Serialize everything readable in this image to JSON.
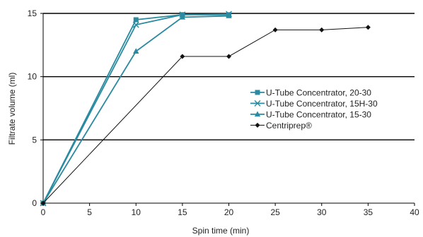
{
  "chart_data": {
    "type": "line",
    "xlabel": "Spin time (min)",
    "ylabel": "Filtrate volume (ml)",
    "xlim": [
      0,
      40
    ],
    "ylim": [
      0,
      15
    ],
    "x_ticks": [
      "0",
      "5",
      "10",
      "15",
      "20",
      "25",
      "30",
      "35",
      "40"
    ],
    "y_ticks": [
      "0",
      "5",
      "10",
      "15"
    ],
    "horizontal_grid": true,
    "legend_position": "right",
    "series": [
      {
        "name": "U-Tube Concentrator, 20-30",
        "marker": "square",
        "color": "#2a8aa0",
        "points": [
          [
            0,
            0
          ],
          [
            10,
            14.5
          ],
          [
            15,
            14.9
          ],
          [
            20,
            14.9
          ]
        ]
      },
      {
        "name": "U-Tube Concentrator, 15H-30",
        "marker": "x",
        "color": "#2a8aa0",
        "points": [
          [
            0,
            0
          ],
          [
            10,
            14.1
          ],
          [
            15,
            14.9
          ],
          [
            20,
            14.95
          ]
        ]
      },
      {
        "name": "U-Tube Concentrator, 15-30",
        "marker": "triangle",
        "color": "#2a8aa0",
        "points": [
          [
            0,
            0
          ],
          [
            10,
            12.0
          ],
          [
            15,
            14.7
          ],
          [
            20,
            14.8
          ]
        ]
      },
      {
        "name": "Centriprep®",
        "marker": "diamond",
        "color": "#111111",
        "points": [
          [
            0,
            0
          ],
          [
            15,
            11.6
          ],
          [
            20,
            11.6
          ],
          [
            25,
            13.7
          ],
          [
            30,
            13.7
          ],
          [
            35,
            13.9
          ]
        ]
      }
    ]
  }
}
